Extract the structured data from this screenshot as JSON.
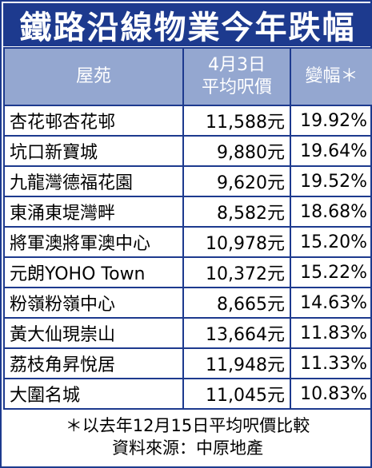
{
  "title": "鐵路沿線物業今年跌幅",
  "headers": {
    "estate": "屋苑",
    "price_line1": "4月3日",
    "price_line2": "平均呎價",
    "drop": "變幅＊"
  },
  "rows": [
    {
      "estate": "杏花邨杏花邨",
      "price": "11,588元",
      "drop": "19.92%"
    },
    {
      "estate": "坑口新寶城",
      "price": "9,880元",
      "drop": "19.64%"
    },
    {
      "estate": "九龍灣德福花園",
      "price": "9,620元",
      "drop": "19.52%"
    },
    {
      "estate": "東涌東堤灣畔",
      "price": "8,582元",
      "drop": "18.68%"
    },
    {
      "estate": "將軍澳將軍澳中心",
      "price": "10,978元",
      "drop": "15.20%"
    },
    {
      "estate": "元朗YOHO Town",
      "price": "10,372元",
      "drop": "15.22%"
    },
    {
      "estate": "粉嶺粉嶺中心",
      "price": "8,665元",
      "drop": "14.63%"
    },
    {
      "estate": "黃大仙現崇山",
      "price": "13,664元",
      "drop": "11.83%"
    },
    {
      "estate": "荔枝角昇悅居",
      "price": "11,948元",
      "drop": "11.33%"
    },
    {
      "estate": "大圍名城",
      "price": "11,045元",
      "drop": "10.83%"
    }
  ],
  "footer": {
    "note": "＊以去年12月15日平均呎價比較",
    "source": "資料來源：中原地產"
  },
  "colors": {
    "title_bg": "#1d3a8e",
    "header_bg": "#94a7d0",
    "border": "#1d3a8e"
  }
}
